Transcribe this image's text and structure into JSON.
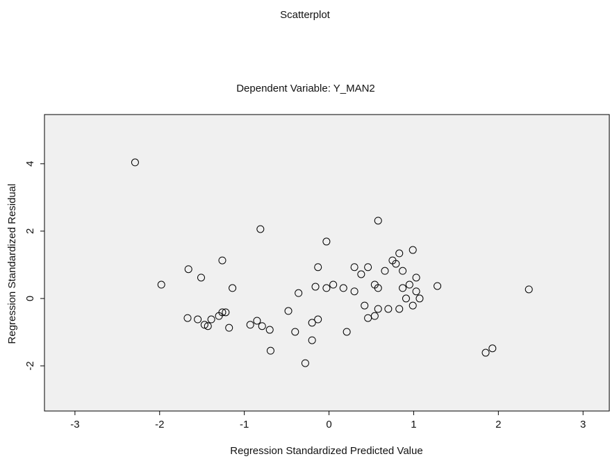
{
  "chart_data": {
    "type": "scatter",
    "title": "Scatterplot",
    "subtitle": "Dependent Variable: Y_MAN2",
    "x_label": "Regression Standardized Predicted Value",
    "y_label": "Regression Standardized Residual",
    "xlim": [
      -3.36,
      3.31
    ],
    "xticks": [
      -3,
      -2,
      -1,
      0,
      1,
      2,
      3
    ],
    "ylim": [
      -3.34,
      5.46
    ],
    "yticks": [
      -2,
      0,
      2,
      4
    ],
    "color": "#000000",
    "background": "#f0f0f0",
    "x": [
      -2.29,
      -0.81,
      0.58,
      -0.03,
      -1.98,
      -1.66,
      -1.51,
      -1.26,
      -1.14,
      -0.13,
      -0.36,
      -0.16,
      -0.03,
      0.05,
      0.17,
      0.3,
      0.38,
      0.46,
      0.3,
      0.42,
      0.54,
      0.66,
      0.75,
      0.83,
      0.79,
      0.87,
      0.99,
      1.03,
      0.95,
      0.87,
      0.91,
      0.99,
      0.83,
      0.7,
      0.58,
      0.46,
      0.54,
      1.28,
      2.36,
      1.85,
      1.93,
      -1.67,
      -1.55,
      -1.47,
      -1.39,
      -1.3,
      -1.22,
      -1.43,
      -1.18,
      -0.93,
      -0.85,
      -0.79,
      -0.7,
      -0.48,
      -0.4,
      -0.2,
      -0.13,
      -0.2,
      -0.69,
      -0.28,
      0.21,
      1.03,
      1.07,
      0.58,
      -1.26
    ],
    "values": [
      4.04,
      2.06,
      2.31,
      1.69,
      0.41,
      0.87,
      0.62,
      1.13,
      0.31,
      0.93,
      0.16,
      0.35,
      0.31,
      0.41,
      0.31,
      0.93,
      0.72,
      0.93,
      0.21,
      -0.21,
      0.41,
      0.82,
      1.13,
      1.34,
      1.03,
      0.82,
      1.44,
      0.62,
      0.41,
      0.31,
      0.0,
      -0.21,
      -0.31,
      -0.31,
      -0.31,
      -0.58,
      -0.52,
      0.37,
      0.27,
      -1.61,
      -1.48,
      -0.58,
      -0.62,
      -0.78,
      -0.62,
      -0.52,
      -0.41,
      -0.82,
      -0.87,
      -0.78,
      -0.66,
      -0.82,
      -0.93,
      -0.37,
      -0.99,
      -0.72,
      -0.62,
      -1.24,
      -1.55,
      -1.92,
      -0.99,
      0.21,
      0.0,
      0.31,
      -0.41
    ]
  }
}
